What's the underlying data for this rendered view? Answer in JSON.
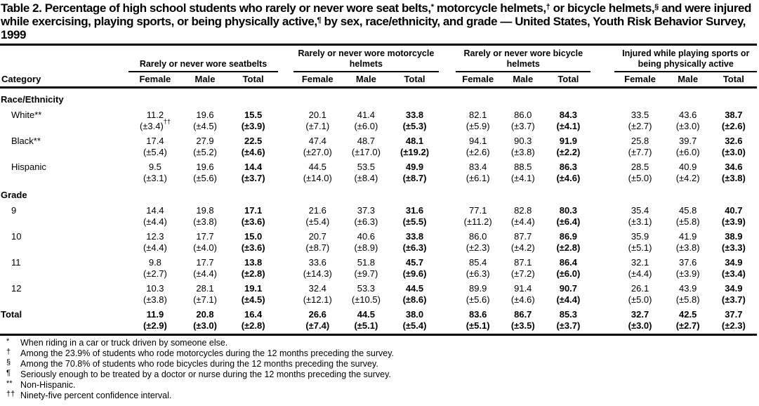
{
  "title_segments": [
    {
      "text": "Table 2. Percentage of high school students who rarely or never wore seat belts,",
      "sup": false
    },
    {
      "text": "*",
      "sup": true
    },
    {
      "text": " motorcycle helmets,",
      "sup": false
    },
    {
      "text": "†",
      "sup": true
    },
    {
      "text": " or bicycle helmets,",
      "sup": false
    },
    {
      "text": "§",
      "sup": true
    },
    {
      "text": " and were injured while exercising, playing sports, or being physically active,",
      "sup": false
    },
    {
      "text": "¶",
      "sup": true
    },
    {
      "text": " by sex, race/ethnicity, and grade — United States, Youth Risk Behavior Survey, 1999",
      "sup": false
    }
  ],
  "table": {
    "category_header": "Category",
    "groups": [
      {
        "label": "Rarely or never wore seatbelts",
        "columns": [
          "Female",
          "Male",
          "Total"
        ]
      },
      {
        "label": "Rarely or never wore motorcycle helmets",
        "columns": [
          "Female",
          "Male",
          "Total"
        ]
      },
      {
        "label": "Rarely or never wore bicycle helmets",
        "columns": [
          "Female",
          "Male",
          "Total"
        ]
      },
      {
        "label": "Injured while playing sports or being physically active",
        "columns": [
          "Female",
          "Male",
          "Total"
        ]
      }
    ],
    "sections": [
      {
        "header": "Race/Ethnicity",
        "rows": [
          {
            "label": "White**",
            "values": [
              "11.2",
              "19.6",
              "15.5",
              "20.1",
              "41.4",
              "33.8",
              "82.1",
              "86.0",
              "84.3",
              "33.5",
              "43.6",
              "38.7"
            ],
            "ci": [
              "(±3.4)††",
              "(±4.5)",
              "(±3.9)",
              "(±7.1)",
              "(±6.0)",
              "(±5.3)",
              "(±5.9)",
              "(±3.7)",
              "(±4.1)",
              "(±2.7)",
              "(±3.0)",
              "(±2.6)"
            ]
          },
          {
            "label": "Black**",
            "values": [
              "17.4",
              "27.9",
              "22.5",
              "47.4",
              "48.7",
              "48.1",
              "94.1",
              "90.3",
              "91.9",
              "25.8",
              "39.7",
              "32.6"
            ],
            "ci": [
              "(±5.4)",
              "(±5.2)",
              "(±4.6)",
              "(±27.0)",
              "(±17.0)",
              "(±19.2)",
              "(±2.6)",
              "(±3.8)",
              "(±2.2)",
              "(±7.7)",
              "(±6.0)",
              "(±3.0)"
            ]
          },
          {
            "label": "Hispanic",
            "values": [
              "9.5",
              "19.6",
              "14.4",
              "44.5",
              "53.5",
              "49.9",
              "83.4",
              "88.5",
              "86.3",
              "28.5",
              "40.9",
              "34.6"
            ],
            "ci": [
              "(±3.1)",
              "(±5.6)",
              "(±3.7)",
              "(±14.0)",
              "(±8.4)",
              "(±8.7)",
              "(±6.1)",
              "(±4.1)",
              "(±4.6)",
              "(±5.0)",
              "(±4.2)",
              "(±3.8)"
            ]
          }
        ]
      },
      {
        "header": "Grade",
        "rows": [
          {
            "label": "9",
            "values": [
              "14.4",
              "19.8",
              "17.1",
              "21.6",
              "37.3",
              "31.6",
              "77.1",
              "82.8",
              "80.3",
              "35.4",
              "45.8",
              "40.7"
            ],
            "ci": [
              "(±4.4)",
              "(±3.8)",
              "(±3.6)",
              "(±5.4)",
              "(±6.3)",
              "(±5.5)",
              "(±11.2)",
              "(±4.4)",
              "(±6.4)",
              "(±3.1)",
              "(±5.8)",
              "(±3.9)"
            ]
          },
          {
            "label": "10",
            "values": [
              "12.3",
              "17.7",
              "15.0",
              "20.7",
              "40.6",
              "33.8",
              "86.0",
              "87.7",
              "86.9",
              "35.9",
              "41.9",
              "38.9"
            ],
            "ci": [
              "(±4.4)",
              "(±4.0)",
              "(±3.6)",
              "(±8.7)",
              "(±8.9)",
              "(±6.3)",
              "(±2.3)",
              "(±4.2)",
              "(±2.8)",
              "(±5.1)",
              "(±3.8)",
              "(±3.3)"
            ]
          },
          {
            "label": "11",
            "values": [
              "9.8",
              "17.7",
              "13.8",
              "33.6",
              "51.8",
              "45.7",
              "85.4",
              "87.1",
              "86.4",
              "32.1",
              "37.6",
              "34.9"
            ],
            "ci": [
              "(±2.7)",
              "(±4.4)",
              "(±2.8)",
              "(±14.3)",
              "(±9.7)",
              "(±9.6)",
              "(±6.3)",
              "(±7.2)",
              "(±6.0)",
              "(±4.4)",
              "(±3.9)",
              "(±3.4)"
            ]
          },
          {
            "label": "12",
            "values": [
              "10.3",
              "28.1",
              "19.1",
              "32.4",
              "53.3",
              "44.5",
              "89.9",
              "91.4",
              "90.7",
              "26.1",
              "43.9",
              "34.9"
            ],
            "ci": [
              "(±3.8)",
              "(±7.1)",
              "(±4.5)",
              "(±12.1)",
              "(±10.5)",
              "(±8.6)",
              "(±5.6)",
              "(±4.6)",
              "(±4.4)",
              "(±5.0)",
              "(±5.8)",
              "(±3.7)"
            ]
          }
        ]
      }
    ],
    "total_row": {
      "label": "Total",
      "values": [
        "11.9",
        "20.8",
        "16.4",
        "26.6",
        "44.5",
        "38.0",
        "83.6",
        "86.7",
        "85.3",
        "32.7",
        "42.5",
        "37.7"
      ],
      "ci": [
        "(±2.9)",
        "(±3.0)",
        "(±2.8)",
        "(±7.4)",
        "(±5.1)",
        "(±5.4)",
        "(±5.1)",
        "(±3.5)",
        "(±3.7)",
        "(±3.0)",
        "(±2.7)",
        "(±2.3)"
      ]
    }
  },
  "footnotes": [
    {
      "marker": "*",
      "text": "When riding in a car or truck driven by someone else."
    },
    {
      "marker": "†",
      "text": "Among the 23.9% of students who rode motorcycles during the 12 months preceding the survey."
    },
    {
      "marker": "§",
      "text": "Among the 70.8% of students who rode bicycles during the 12 months preceding the survey."
    },
    {
      "marker": "¶",
      "text": "Seriously enough to be treated by a doctor or nurse during the 12 months preceding the survey."
    },
    {
      "marker": "**",
      "text": "Non-Hispanic."
    },
    {
      "marker": "††",
      "text": "Ninety-five percent confidence interval."
    }
  ]
}
